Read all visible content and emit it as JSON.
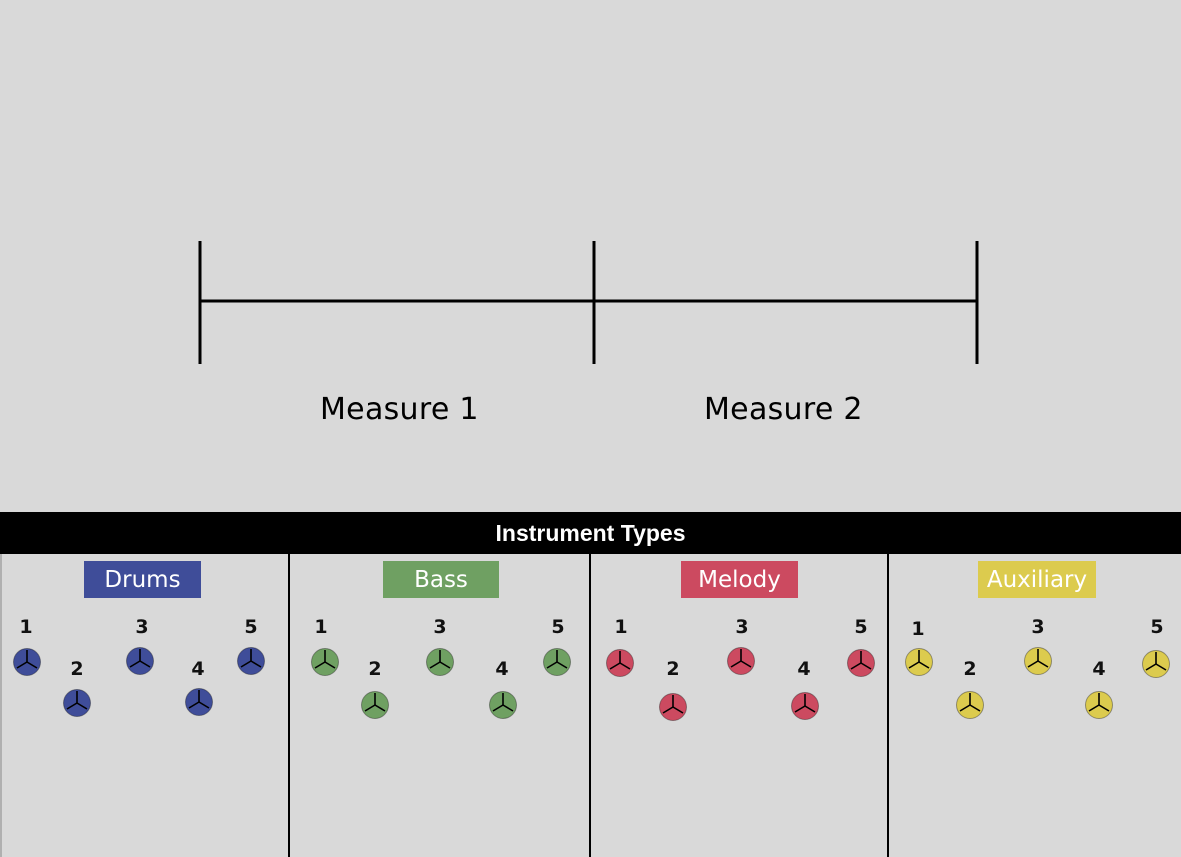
{
  "timeline": {
    "measures": [
      {
        "label": "Measure 1"
      },
      {
        "label": "Measure 2"
      }
    ]
  },
  "palette": {
    "header": "Instrument Types",
    "panels": [
      {
        "title": "Drums",
        "color": "#3f4d99",
        "tokens": [
          "1",
          "2",
          "3",
          "4",
          "5"
        ]
      },
      {
        "title": "Bass",
        "color": "#6fa062",
        "tokens": [
          "1",
          "2",
          "3",
          "4",
          "5"
        ]
      },
      {
        "title": "Melody",
        "color": "#cc4a60",
        "tokens": [
          "1",
          "2",
          "3",
          "4",
          "5"
        ]
      },
      {
        "title": "Auxiliary",
        "color": "#dccb4e",
        "tokens": [
          "1",
          "2",
          "3",
          "4",
          "5"
        ]
      }
    ]
  }
}
